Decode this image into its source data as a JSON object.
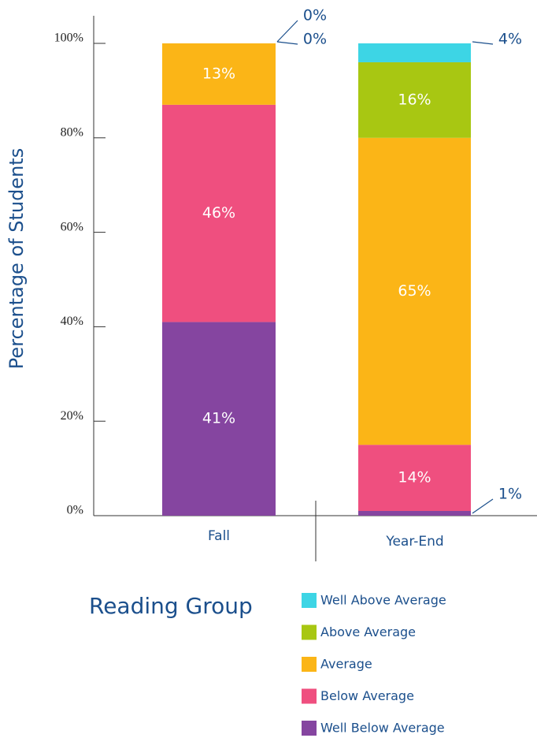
{
  "chart_data": {
    "type": "stacked_bar",
    "y_label": "Percentage of Students",
    "legend_title": "Reading Group",
    "categories": [
      "Fall",
      "Year-End"
    ],
    "series": [
      {
        "name": "Well Below Average",
        "color": "#8545a0",
        "values": [
          41,
          1
        ],
        "value_labels": [
          "41%",
          "1%"
        ]
      },
      {
        "name": "Below Average",
        "color": "#ef4f7f",
        "values": [
          46,
          14
        ],
        "value_labels": [
          "46%",
          "14%"
        ]
      },
      {
        "name": "Average",
        "color": "#fbb517",
        "values": [
          13,
          65
        ],
        "value_labels": [
          "13%",
          "65%"
        ]
      },
      {
        "name": "Above Average",
        "color": "#a8c712",
        "values": [
          0,
          16
        ],
        "value_labels": [
          "0%",
          "16%"
        ]
      },
      {
        "name": "Well Above Average",
        "color": "#3dd5e5",
        "values": [
          0,
          4
        ],
        "value_labels": [
          "0%",
          "4%"
        ]
      }
    ],
    "ylim": [
      0,
      100
    ],
    "yticks": [
      {
        "value": 0,
        "label": "0%"
      },
      {
        "value": 20,
        "label": "20%"
      },
      {
        "value": 40,
        "label": "40%"
      },
      {
        "value": 60,
        "label": "60%"
      },
      {
        "value": 80,
        "label": "80%"
      },
      {
        "value": 100,
        "label": "100%"
      }
    ]
  }
}
